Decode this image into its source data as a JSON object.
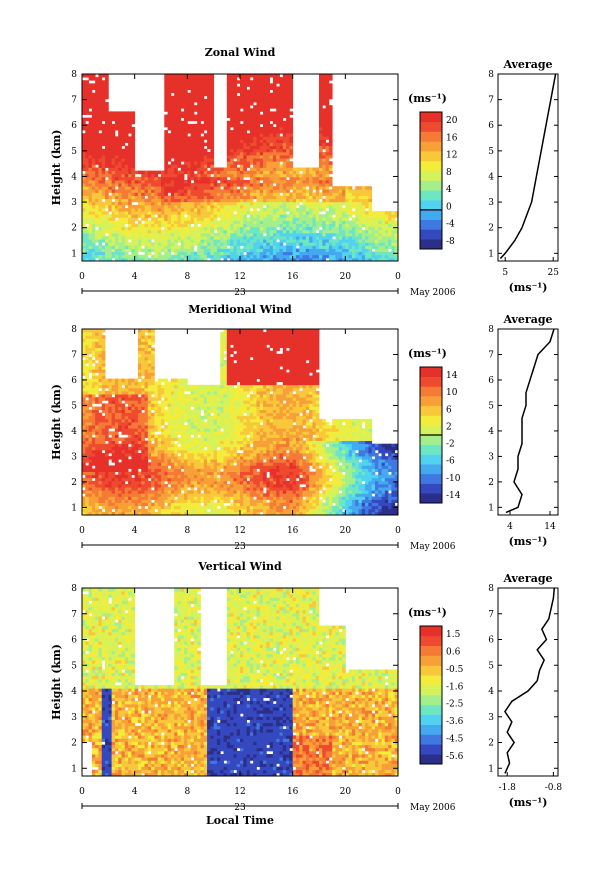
{
  "chart_data": [
    {
      "type": "heatmap",
      "title": "Zonal Wind",
      "ylabel": "Height (km)",
      "xlabel": "",
      "date_label": "23",
      "month_label": "May 2006",
      "x_ticks": [
        "0",
        "4",
        "8",
        "12",
        "16",
        "20",
        "0"
      ],
      "xlim": [
        0,
        24
      ],
      "y_ticks": [
        "1",
        "2",
        "3",
        "4",
        "5",
        "6",
        "7",
        "8"
      ],
      "ylim": [
        0.7,
        8
      ],
      "colorbar": {
        "unit": "(ms⁻¹)",
        "levels": [
          -8,
          20
        ],
        "ticks": [
          "20",
          "16",
          "12",
          "8",
          "4",
          "0",
          "-4",
          "-8"
        ]
      },
      "zero_contour": true,
      "average_profile": {
        "title": "Average",
        "xlabel": "(ms⁻¹)",
        "x_ticks": [
          "5",
          "25"
        ],
        "xlim": [
          2,
          27
        ],
        "heights": [
          0.8,
          1.0,
          1.5,
          2.0,
          2.5,
          3.0,
          3.5,
          4.0,
          4.5,
          5.0,
          5.5,
          6.0,
          6.5,
          7.0,
          7.5,
          8.0
        ],
        "values": [
          3,
          5,
          9,
          12,
          14,
          16,
          17,
          18,
          19,
          20,
          21,
          22,
          23,
          24,
          25,
          26
        ]
      }
    },
    {
      "type": "heatmap",
      "title": "Meridional Wind",
      "ylabel": "Height (km)",
      "xlabel": "",
      "date_label": "23",
      "month_label": "May 2006",
      "x_ticks": [
        "0",
        "4",
        "8",
        "12",
        "16",
        "20",
        "0"
      ],
      "xlim": [
        0,
        24
      ],
      "y_ticks": [
        "1",
        "2",
        "3",
        "4",
        "5",
        "6",
        "7",
        "8"
      ],
      "ylim": [
        0.7,
        8
      ],
      "colorbar": {
        "unit": "(ms⁻¹)",
        "levels": [
          -16,
          16
        ],
        "ticks": [
          "14",
          "10",
          "6",
          "2",
          "-2",
          "-6",
          "-10",
          "-14"
        ]
      },
      "zero_contour": true,
      "average_profile": {
        "title": "Average",
        "xlabel": "(ms⁻¹)",
        "x_ticks": [
          "4",
          "14"
        ],
        "xlim": [
          1,
          16
        ],
        "heights": [
          0.8,
          1.0,
          1.5,
          2.0,
          2.5,
          3.0,
          3.5,
          4.0,
          4.5,
          5.0,
          5.5,
          6.0,
          6.5,
          7.0,
          7.5,
          8.0
        ],
        "values": [
          3,
          6,
          7,
          5,
          6,
          6,
          7,
          7,
          7,
          8,
          8,
          9,
          10,
          11,
          14,
          15
        ]
      }
    },
    {
      "type": "heatmap",
      "title": "Vertical Wind",
      "ylabel": "Height (km)",
      "xlabel": "Local Time",
      "date_label": "23",
      "month_label": "May 2006",
      "x_ticks": [
        "0",
        "4",
        "8",
        "12",
        "16",
        "20",
        "0"
      ],
      "xlim": [
        0,
        24
      ],
      "y_ticks": [
        "1",
        "2",
        "3",
        "4",
        "5",
        "6",
        "7",
        "8"
      ],
      "ylim": [
        0.7,
        8
      ],
      "colorbar": {
        "unit": "(ms⁻¹)",
        "levels": [
          -6,
          2
        ],
        "ticks": [
          "1.5",
          "0.6",
          "-0.5",
          "-1.6",
          "-2.5",
          "-3.6",
          "-4.5",
          "-5.6"
        ]
      },
      "zero_contour": false,
      "average_profile": {
        "title": "Average",
        "xlabel": "(ms⁻¹)",
        "x_ticks": [
          "-1.8",
          "-0.8"
        ],
        "xlim": [
          -2.0,
          -0.7
        ],
        "heights": [
          0.8,
          1.2,
          1.6,
          2.0,
          2.4,
          2.8,
          3.2,
          3.6,
          4.0,
          4.4,
          4.8,
          5.2,
          5.6,
          6.0,
          6.4,
          6.8,
          7.2,
          7.6,
          8.0
        ],
        "values": [
          -1.85,
          -1.75,
          -1.8,
          -1.65,
          -1.8,
          -1.7,
          -1.85,
          -1.7,
          -1.35,
          -1.15,
          -1.1,
          -1.0,
          -1.15,
          -0.95,
          -1.05,
          -0.9,
          -0.85,
          -0.8,
          -0.78
        ]
      }
    }
  ]
}
